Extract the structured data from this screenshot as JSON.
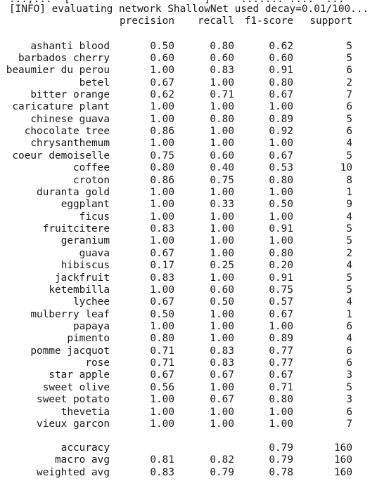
{
  "terminal": {
    "cut_line": "...,...  [                      ]  -- ....... ....  ...",
    "info_line": "[INFO] evaluating network ShallowNet used decay=0.01/100..."
  },
  "report": {
    "headers": {
      "precision": "precision",
      "recall": "recall",
      "f1": "f1-score",
      "support": "support"
    },
    "rows": [
      {
        "label": "ashanti blood",
        "precision": "0.50",
        "recall": "0.80",
        "f1": "0.62",
        "support": "5"
      },
      {
        "label": "barbados cherry",
        "precision": "0.60",
        "recall": "0.60",
        "f1": "0.60",
        "support": "5"
      },
      {
        "label": "beaumier du perou",
        "precision": "1.00",
        "recall": "0.83",
        "f1": "0.91",
        "support": "6"
      },
      {
        "label": "betel",
        "precision": "0.67",
        "recall": "1.00",
        "f1": "0.80",
        "support": "2"
      },
      {
        "label": "bitter orange",
        "precision": "0.62",
        "recall": "0.71",
        "f1": "0.67",
        "support": "7"
      },
      {
        "label": "caricature plant",
        "precision": "1.00",
        "recall": "1.00",
        "f1": "1.00",
        "support": "6"
      },
      {
        "label": "chinese guava",
        "precision": "1.00",
        "recall": "0.80",
        "f1": "0.89",
        "support": "5"
      },
      {
        "label": "chocolate tree",
        "precision": "0.86",
        "recall": "1.00",
        "f1": "0.92",
        "support": "6"
      },
      {
        "label": "chrysanthemum",
        "precision": "1.00",
        "recall": "1.00",
        "f1": "1.00",
        "support": "4"
      },
      {
        "label": "coeur demoiselle",
        "precision": "0.75",
        "recall": "0.60",
        "f1": "0.67",
        "support": "5"
      },
      {
        "label": "coffee",
        "precision": "0.80",
        "recall": "0.40",
        "f1": "0.53",
        "support": "10"
      },
      {
        "label": "croton",
        "precision": "0.86",
        "recall": "0.75",
        "f1": "0.80",
        "support": "8"
      },
      {
        "label": "duranta gold",
        "precision": "1.00",
        "recall": "1.00",
        "f1": "1.00",
        "support": "1"
      },
      {
        "label": "eggplant",
        "precision": "1.00",
        "recall": "0.33",
        "f1": "0.50",
        "support": "9"
      },
      {
        "label": "ficus",
        "precision": "1.00",
        "recall": "1.00",
        "f1": "1.00",
        "support": "4"
      },
      {
        "label": "fruitcitere",
        "precision": "0.83",
        "recall": "1.00",
        "f1": "0.91",
        "support": "5"
      },
      {
        "label": "geranium",
        "precision": "1.00",
        "recall": "1.00",
        "f1": "1.00",
        "support": "5"
      },
      {
        "label": "guava",
        "precision": "0.67",
        "recall": "1.00",
        "f1": "0.80",
        "support": "2"
      },
      {
        "label": "hibiscus",
        "precision": "0.17",
        "recall": "0.25",
        "f1": "0.20",
        "support": "4"
      },
      {
        "label": "jackfruit",
        "precision": "0.83",
        "recall": "1.00",
        "f1": "0.91",
        "support": "5"
      },
      {
        "label": "ketembilla",
        "precision": "1.00",
        "recall": "0.60",
        "f1": "0.75",
        "support": "5"
      },
      {
        "label": "lychee",
        "precision": "0.67",
        "recall": "0.50",
        "f1": "0.57",
        "support": "4"
      },
      {
        "label": "mulberry leaf",
        "precision": "0.50",
        "recall": "1.00",
        "f1": "0.67",
        "support": "1"
      },
      {
        "label": "papaya",
        "precision": "1.00",
        "recall": "1.00",
        "f1": "1.00",
        "support": "6"
      },
      {
        "label": "pimento",
        "precision": "0.80",
        "recall": "1.00",
        "f1": "0.89",
        "support": "4"
      },
      {
        "label": "pomme jacquot",
        "precision": "0.71",
        "recall": "0.83",
        "f1": "0.77",
        "support": "6"
      },
      {
        "label": "rose",
        "precision": "0.71",
        "recall": "0.83",
        "f1": "0.77",
        "support": "6"
      },
      {
        "label": "star apple",
        "precision": "0.67",
        "recall": "0.67",
        "f1": "0.67",
        "support": "3"
      },
      {
        "label": "sweet olive",
        "precision": "0.56",
        "recall": "1.00",
        "f1": "0.71",
        "support": "5"
      },
      {
        "label": "sweet potato",
        "precision": "1.00",
        "recall": "0.67",
        "f1": "0.80",
        "support": "3"
      },
      {
        "label": "thevetia",
        "precision": "1.00",
        "recall": "1.00",
        "f1": "1.00",
        "support": "6"
      },
      {
        "label": "vieux garcon",
        "precision": "1.00",
        "recall": "1.00",
        "f1": "1.00",
        "support": "7"
      }
    ],
    "summary": [
      {
        "label": "accuracy",
        "precision": "",
        "recall": "",
        "f1": "0.79",
        "support": "160"
      },
      {
        "label": "macro avg",
        "precision": "0.81",
        "recall": "0.82",
        "f1": "0.79",
        "support": "160"
      },
      {
        "label": "weighted avg",
        "precision": "0.83",
        "recall": "0.79",
        "f1": "0.78",
        "support": "160"
      }
    ]
  }
}
